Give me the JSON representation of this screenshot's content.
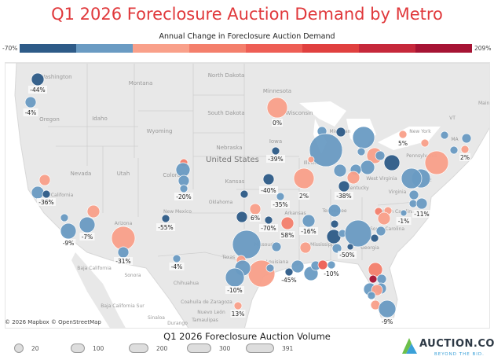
{
  "title": "Q1 2026 Foreclosure Auction Demand by Metro",
  "color_legend": {
    "title": "Annual Change in Foreclosure Auction Demand",
    "min": "-70%",
    "max": "209%",
    "colors": [
      "#2e5b88",
      "#6a9bc3",
      "#f9a08a",
      "#f47f6c",
      "#ee5e55",
      "#e0403f",
      "#c6283b",
      "#a61434"
    ]
  },
  "map": {
    "attribution": "© 2026 Mapbox © OpenStreetMap",
    "place_labels": [
      "Washington",
      "Montana",
      "North Dakota",
      "South Dakota",
      "Minnesota",
      "Wisconsin",
      "Oregon",
      "Idaho",
      "Wyoming",
      "Nebraska",
      "Iowa",
      "United States",
      "Nevada",
      "Utah",
      "Colorado",
      "Kansas",
      "California",
      "Arizona",
      "New Mexico",
      "Missouri",
      "Illinois",
      "Kentucky",
      "West Virginia",
      "Virginia",
      "Pennsylvania",
      "New York",
      "Maine",
      "VT",
      "MA",
      "Tennessee",
      "Arkansas",
      "Mississippi",
      "Georgia",
      "Texas",
      "Louisiana",
      "Baja California",
      "Sonora",
      "Chihuahua",
      "Coahuila de Zaragoza",
      "Baja California Sur",
      "Nuevo León",
      "Sinaloa",
      "Durango",
      "Tamaulipas",
      "Michigan",
      "Ohio",
      "North Carolina",
      "South Carolina",
      "Oklahoma",
      "DE"
    ],
    "change_labels": [
      "-44%",
      "-4%",
      "0%",
      "-20%",
      "-36%",
      "-9%",
      "-7%",
      "-31%",
      "-55%",
      "-4%",
      "-39%",
      "-40%",
      "2%",
      "-38%",
      "5%",
      "2%",
      "-35%",
      "6%",
      "-70%",
      "58%",
      "-16%",
      "-50%",
      "-1%",
      "-11%",
      "-10%",
      "-45%",
      "-10%",
      "13%",
      "-9%"
    ]
  },
  "volume_legend": {
    "title": "Q1 2026 Foreclosure Auction Volume",
    "sizes": [
      "20",
      "100",
      "200",
      "300",
      "391"
    ]
  },
  "logo": {
    "brand": "AUCTION.COM",
    "tagline": "BEYOND THE BID."
  }
}
